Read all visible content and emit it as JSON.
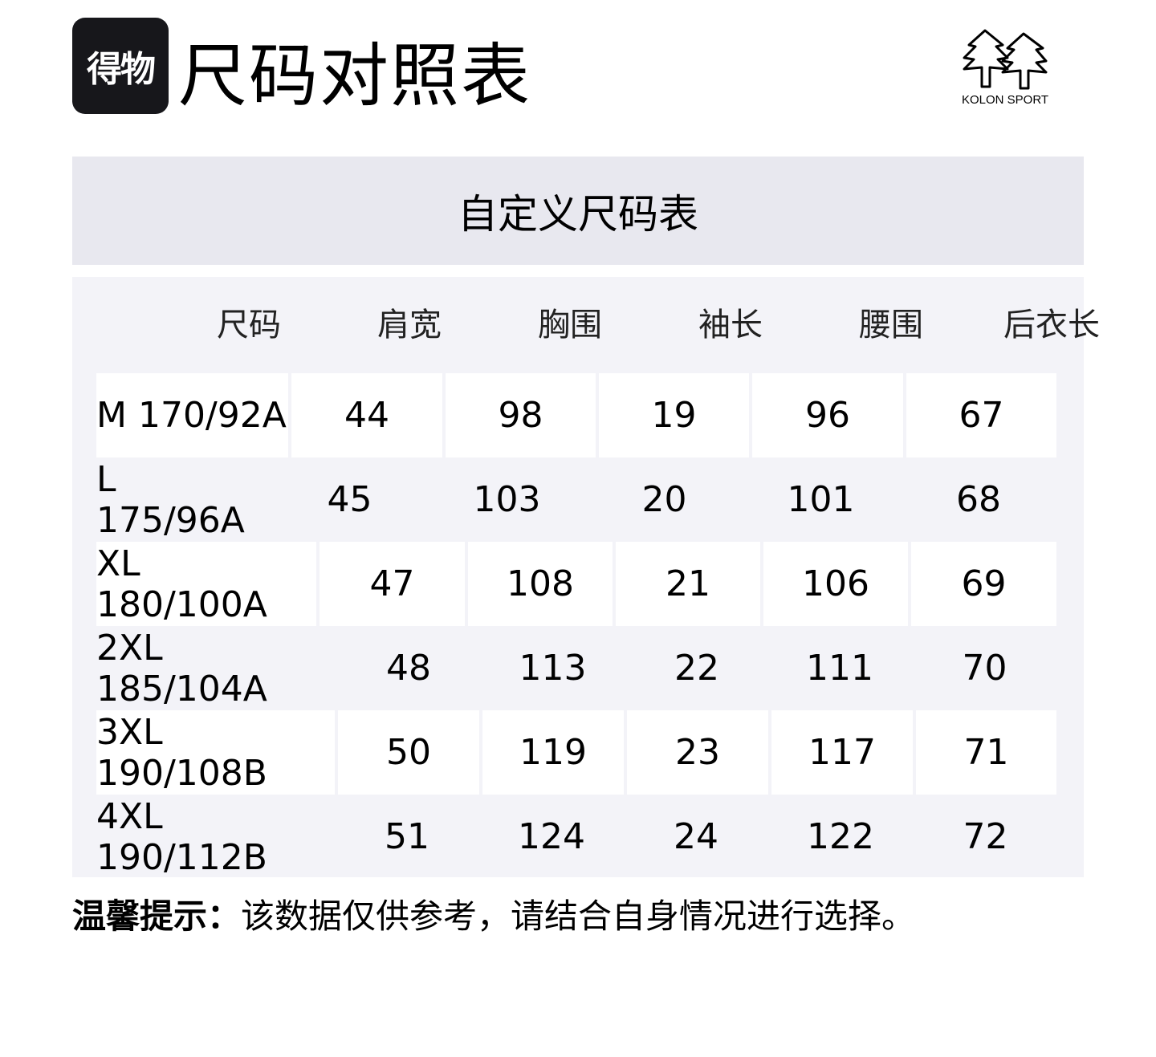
{
  "header": {
    "badge_text": "得物",
    "title": "尺码对照表",
    "brand_name": "KOLON SPORT"
  },
  "table_title": "自定义尺码表",
  "columns": [
    "尺码",
    "肩宽",
    "胸围",
    "袖长",
    "腰围",
    "后衣长"
  ],
  "rows": [
    [
      "M 170/92A",
      "44",
      "98",
      "19",
      "96",
      "67"
    ],
    [
      "L 175/96A",
      "45",
      "103",
      "20",
      "101",
      "68"
    ],
    [
      "XL 180/100A",
      "47",
      "108",
      "21",
      "106",
      "69"
    ],
    [
      "2XL 185/104A",
      "48",
      "113",
      "22",
      "111",
      "70"
    ],
    [
      "3XL 190/108B",
      "50",
      "119",
      "23",
      "117",
      "71"
    ],
    [
      "4XL 190/112B",
      "51",
      "124",
      "24",
      "122",
      "72"
    ]
  ],
  "note": {
    "label": "温馨提示：",
    "text": "该数据仅供参考，请结合自身情况进行选择。"
  },
  "colors": {
    "badge_bg": "#17171b",
    "title_band": "#e8e8ef",
    "table_bg": "#f3f3f8",
    "cell_bg": "#ffffff"
  }
}
